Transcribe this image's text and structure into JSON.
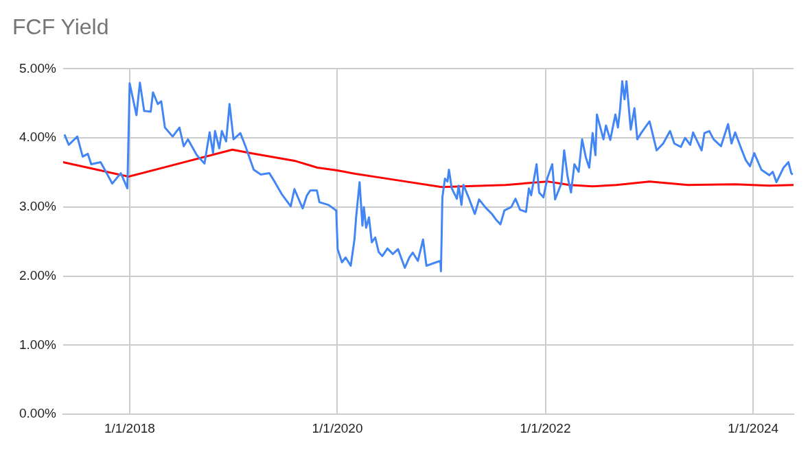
{
  "chart_data": {
    "type": "line",
    "title": "FCF Yield",
    "xlim": [
      "2017-05-12",
      "2024-05-22"
    ],
    "xticks": [
      {
        "value": "2018-01-01",
        "label": "1/1/2018"
      },
      {
        "value": "2020-01-01",
        "label": "1/1/2020"
      },
      {
        "value": "2022-01-01",
        "label": "1/1/2022"
      },
      {
        "value": "2024-01-01",
        "label": "1/1/2024"
      }
    ],
    "ylim": [
      0,
      5
    ],
    "yticks": [
      {
        "value": 0,
        "label": "0.00%"
      },
      {
        "value": 1,
        "label": "1.00%"
      },
      {
        "value": 2,
        "label": "2.00%"
      },
      {
        "value": 3,
        "label": "3.00%"
      },
      {
        "value": 4,
        "label": "4.00%"
      },
      {
        "value": 5,
        "label": "5.00%"
      }
    ],
    "grid": true,
    "legend": false,
    "marker": "none",
    "line_style": "solid",
    "series": [
      {
        "color": "#4285f4",
        "x": [
          "2017-05-17",
          "2017-06-01",
          "2017-07-01",
          "2017-07-20",
          "2017-08-07",
          "2017-08-19",
          "2017-09-21",
          "2017-11-01",
          "2017-12-01",
          "2017-12-24",
          "2018-01-01",
          "2018-01-25",
          "2018-02-06",
          "2018-02-21",
          "2018-03-16",
          "2018-03-24",
          "2018-04-10",
          "2018-04-22",
          "2018-05-05",
          "2018-06-01",
          "2018-06-25",
          "2018-07-10",
          "2018-07-25",
          "2018-08-25",
          "2018-09-21",
          "2018-10-09",
          "2018-10-21",
          "2018-10-28",
          "2018-11-12",
          "2018-11-21",
          "2018-12-06",
          "2018-12-18",
          "2019-01-01",
          "2019-01-25",
          "2019-02-12",
          "2019-03-13",
          "2019-04-07",
          "2019-05-07",
          "2019-05-25",
          "2019-06-19",
          "2019-07-21",
          "2019-08-03",
          "2019-09-01",
          "2019-09-16",
          "2019-09-28",
          "2019-10-21",
          "2019-10-30",
          "2019-12-01",
          "2019-12-28",
          "2020-01-02",
          "2020-01-17",
          "2020-01-30",
          "2020-02-17",
          "2020-03-01",
          "2020-03-07",
          "2020-03-19",
          "2020-03-29",
          "2020-04-03",
          "2020-04-11",
          "2020-04-21",
          "2020-05-01",
          "2020-05-13",
          "2020-05-25",
          "2020-06-07",
          "2020-06-25",
          "2020-07-14",
          "2020-08-01",
          "2020-08-25",
          "2020-09-10",
          "2020-09-22",
          "2020-10-10",
          "2020-10-28",
          "2020-11-09",
          "2020-12-06",
          "2020-12-28",
          "2020-12-30",
          "2021-01-04",
          "2021-01-13",
          "2021-01-22",
          "2021-01-27",
          "2021-02-06",
          "2021-02-24",
          "2021-03-02",
          "2021-03-12",
          "2021-03-19",
          "2021-04-06",
          "2021-04-28",
          "2021-05-13",
          "2021-06-03",
          "2021-06-27",
          "2021-07-13",
          "2021-07-27",
          "2021-08-10",
          "2021-09-03",
          "2021-09-18",
          "2021-10-04",
          "2021-10-25",
          "2021-11-04",
          "2021-11-12",
          "2021-12-01",
          "2021-12-10",
          "2021-12-25",
          "2022-01-08",
          "2022-01-25",
          "2022-02-04",
          "2022-02-26",
          "2022-03-08",
          "2022-03-20",
          "2022-04-01",
          "2022-04-13",
          "2022-04-28",
          "2022-05-10",
          "2022-05-23",
          "2022-06-04",
          "2022-06-16",
          "2022-06-26",
          "2022-07-01",
          "2022-07-24",
          "2022-08-02",
          "2022-08-17",
          "2022-09-04",
          "2022-09-13",
          "2022-09-21",
          "2022-09-28",
          "2022-10-06",
          "2022-10-13",
          "2022-10-28",
          "2022-11-10",
          "2022-11-20",
          "2022-12-05",
          "2023-01-02",
          "2023-01-27",
          "2023-02-19",
          "2023-03-15",
          "2023-03-30",
          "2023-04-22",
          "2023-05-07",
          "2023-05-25",
          "2023-06-04",
          "2023-07-04",
          "2023-07-14",
          "2023-07-31",
          "2023-08-15",
          "2023-09-10",
          "2023-10-05",
          "2023-10-17",
          "2023-10-30",
          "2023-11-17",
          "2023-12-06",
          "2023-12-21",
          "2024-01-05",
          "2024-01-30",
          "2024-02-27",
          "2024-03-10",
          "2024-03-23",
          "2024-04-17",
          "2024-05-04",
          "2024-05-14",
          "2024-05-19"
        ],
        "values": [
          4.05,
          3.9,
          4.02,
          3.73,
          3.77,
          3.62,
          3.65,
          3.34,
          3.49,
          3.27,
          4.79,
          4.33,
          4.8,
          4.39,
          4.38,
          4.66,
          4.49,
          4.53,
          4.15,
          4.02,
          4.15,
          3.88,
          3.98,
          3.75,
          3.63,
          4.08,
          3.78,
          4.1,
          3.85,
          4.1,
          3.95,
          4.49,
          3.98,
          4.07,
          3.88,
          3.54,
          3.47,
          3.49,
          3.37,
          3.19,
          3.01,
          3.26,
          2.98,
          3.17,
          3.24,
          3.24,
          3.07,
          3.03,
          2.95,
          2.39,
          2.2,
          2.27,
          2.15,
          2.53,
          2.86,
          3.36,
          2.73,
          3.0,
          2.7,
          2.85,
          2.49,
          2.56,
          2.35,
          2.29,
          2.4,
          2.32,
          2.39,
          2.12,
          2.27,
          2.34,
          2.22,
          2.53,
          2.15,
          2.19,
          2.22,
          2.07,
          3.14,
          3.41,
          3.37,
          3.54,
          3.27,
          3.12,
          3.31,
          3.03,
          3.32,
          3.14,
          2.9,
          3.11,
          3.0,
          2.9,
          2.81,
          2.75,
          2.95,
          3.0,
          3.12,
          2.96,
          2.93,
          3.27,
          3.17,
          3.62,
          3.21,
          3.14,
          3.42,
          3.62,
          3.11,
          3.34,
          3.82,
          3.44,
          3.21,
          3.62,
          3.51,
          3.98,
          3.72,
          3.57,
          4.07,
          3.75,
          4.34,
          3.98,
          4.18,
          3.97,
          4.34,
          4.15,
          4.44,
          4.82,
          4.56,
          4.82,
          4.12,
          4.43,
          3.98,
          4.08,
          4.24,
          3.82,
          3.92,
          4.1,
          3.92,
          3.87,
          4.0,
          3.9,
          4.08,
          3.82,
          4.07,
          4.1,
          3.98,
          3.88,
          4.2,
          3.92,
          4.08,
          3.88,
          3.68,
          3.59,
          3.78,
          3.54,
          3.46,
          3.51,
          3.36,
          3.57,
          3.65,
          3.49,
          3.47
        ]
      },
      {
        "color": "#ff0000",
        "x": [
          "2017-05-12",
          "2017-12-28",
          "2018-12-28",
          "2019-03-01",
          "2019-08-03",
          "2019-10-23",
          "2020-01-01",
          "2020-03-05",
          "2020-06-25",
          "2021-01-01",
          "2021-08-15",
          "2022-01-08",
          "2022-03-27",
          "2022-06-16",
          "2022-09-08",
          "2023-01-02",
          "2023-05-17",
          "2023-10-30",
          "2024-02-27",
          "2024-05-22"
        ],
        "values": [
          3.65,
          3.44,
          3.83,
          3.78,
          3.67,
          3.57,
          3.53,
          3.48,
          3.41,
          3.29,
          3.32,
          3.37,
          3.32,
          3.3,
          3.32,
          3.37,
          3.32,
          3.33,
          3.31,
          3.32
        ]
      }
    ]
  }
}
